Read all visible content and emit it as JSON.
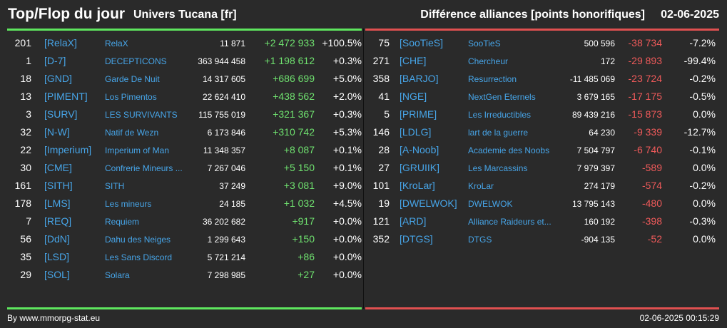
{
  "header": {
    "title": "Top/Flop du jour",
    "server": "Univers Tucana [fr]",
    "metric": "Différence alliances [points honorifiques]",
    "date": "02-06-2025"
  },
  "colors": {
    "accent_blue": "#47a5e8",
    "positive": "#6fe16f",
    "negative": "#ef5a5a",
    "top_bar": "#5ee65e",
    "flop_bar": "#e05050"
  },
  "top": [
    {
      "rank": "201",
      "tag": "[RelaX]",
      "name": "RelaX",
      "points": "11 871",
      "diff": "+2 472 933",
      "pct": "+100.5%"
    },
    {
      "rank": "1",
      "tag": "[D-7]",
      "name": "DECEPTICONS",
      "points": "363 944 458",
      "diff": "+1 198 612",
      "pct": "+0.3%"
    },
    {
      "rank": "18",
      "tag": "[GND]",
      "name": "Garde De Nuit",
      "points": "14 317 605",
      "diff": "+686 699",
      "pct": "+5.0%"
    },
    {
      "rank": "13",
      "tag": "[PIMENT]",
      "name": "Los Pimentos",
      "points": "22 624 410",
      "diff": "+438 562",
      "pct": "+2.0%"
    },
    {
      "rank": "3",
      "tag": "[SURV]",
      "name": "LES SURVIVANTS",
      "points": "115 755 019",
      "diff": "+321 367",
      "pct": "+0.3%"
    },
    {
      "rank": "32",
      "tag": "[N-W]",
      "name": "Natif de Wezn",
      "points": "6 173 846",
      "diff": "+310 742",
      "pct": "+5.3%"
    },
    {
      "rank": "22",
      "tag": "[Imperium]",
      "name": "Imperium of Man",
      "points": "11 348 357",
      "diff": "+8 087",
      "pct": "+0.1%"
    },
    {
      "rank": "30",
      "tag": "[CME]",
      "name": "Confrerie Mineurs ...",
      "points": "7 267 046",
      "diff": "+5 150",
      "pct": "+0.1%"
    },
    {
      "rank": "161",
      "tag": "[SITH]",
      "name": "SITH",
      "points": "37 249",
      "diff": "+3 081",
      "pct": "+9.0%"
    },
    {
      "rank": "178",
      "tag": "[LMS]",
      "name": "Les mineurs",
      "points": "24 185",
      "diff": "+1 032",
      "pct": "+4.5%"
    },
    {
      "rank": "7",
      "tag": "[REQ]",
      "name": "Requiem",
      "points": "36 202 682",
      "diff": "+917",
      "pct": "+0.0%"
    },
    {
      "rank": "56",
      "tag": "[DdN]",
      "name": "Dahu des Neiges",
      "points": "1 299 643",
      "diff": "+150",
      "pct": "+0.0%"
    },
    {
      "rank": "35",
      "tag": "[LSD]",
      "name": "Les Sans Discord",
      "points": "5 721 214",
      "diff": "+86",
      "pct": "+0.0%"
    },
    {
      "rank": "29",
      "tag": "[SOL]",
      "name": "Solara",
      "points": "7 298 985",
      "diff": "+27",
      "pct": "+0.0%"
    }
  ],
  "flop": [
    {
      "rank": "75",
      "tag": "[SooTieS]",
      "name": "SooTieS",
      "points": "500 596",
      "diff": "-38 734",
      "pct": "-7.2%"
    },
    {
      "rank": "271",
      "tag": "[CHE]",
      "name": "Chercheur",
      "points": "172",
      "diff": "-29 893",
      "pct": "-99.4%"
    },
    {
      "rank": "358",
      "tag": "[BARJO]",
      "name": "Resurrection",
      "points": "-11 485 069",
      "diff": "-23 724",
      "pct": "-0.2%"
    },
    {
      "rank": "41",
      "tag": "[NGE]",
      "name": "NextGen Eternels",
      "points": "3 679 165",
      "diff": "-17 175",
      "pct": "-0.5%"
    },
    {
      "rank": "5",
      "tag": "[PRIME]",
      "name": "Les Irreductibles",
      "points": "89 439 216",
      "diff": "-15 873",
      "pct": "0.0%"
    },
    {
      "rank": "146",
      "tag": "[LDLG]",
      "name": "lart de la guerre",
      "points": "64 230",
      "diff": "-9 339",
      "pct": "-12.7%"
    },
    {
      "rank": "28",
      "tag": "[A-Noob]",
      "name": "Academie des Noobs",
      "points": "7 504 797",
      "diff": "-6 740",
      "pct": "-0.1%"
    },
    {
      "rank": "27",
      "tag": "[GRUIIK]",
      "name": "Les Marcassins",
      "points": "7 979 397",
      "diff": "-589",
      "pct": "0.0%"
    },
    {
      "rank": "101",
      "tag": "[KroLar]",
      "name": "KroLar",
      "points": "274 179",
      "diff": "-574",
      "pct": "-0.2%"
    },
    {
      "rank": "19",
      "tag": "[DWELWOK]",
      "name": "DWELWOK",
      "points": "13 795 143",
      "diff": "-480",
      "pct": "0.0%"
    },
    {
      "rank": "121",
      "tag": "[ARD]",
      "name": "Alliance Raideurs et...",
      "points": "160 192",
      "diff": "-398",
      "pct": "-0.3%"
    },
    {
      "rank": "352",
      "tag": "[DTGS]",
      "name": "DTGS",
      "points": "-904 135",
      "diff": "-52",
      "pct": "0.0%"
    }
  ],
  "footer": {
    "source": "By www.mmorpg-stat.eu",
    "timestamp": "02-06-2025 00:15:29"
  }
}
